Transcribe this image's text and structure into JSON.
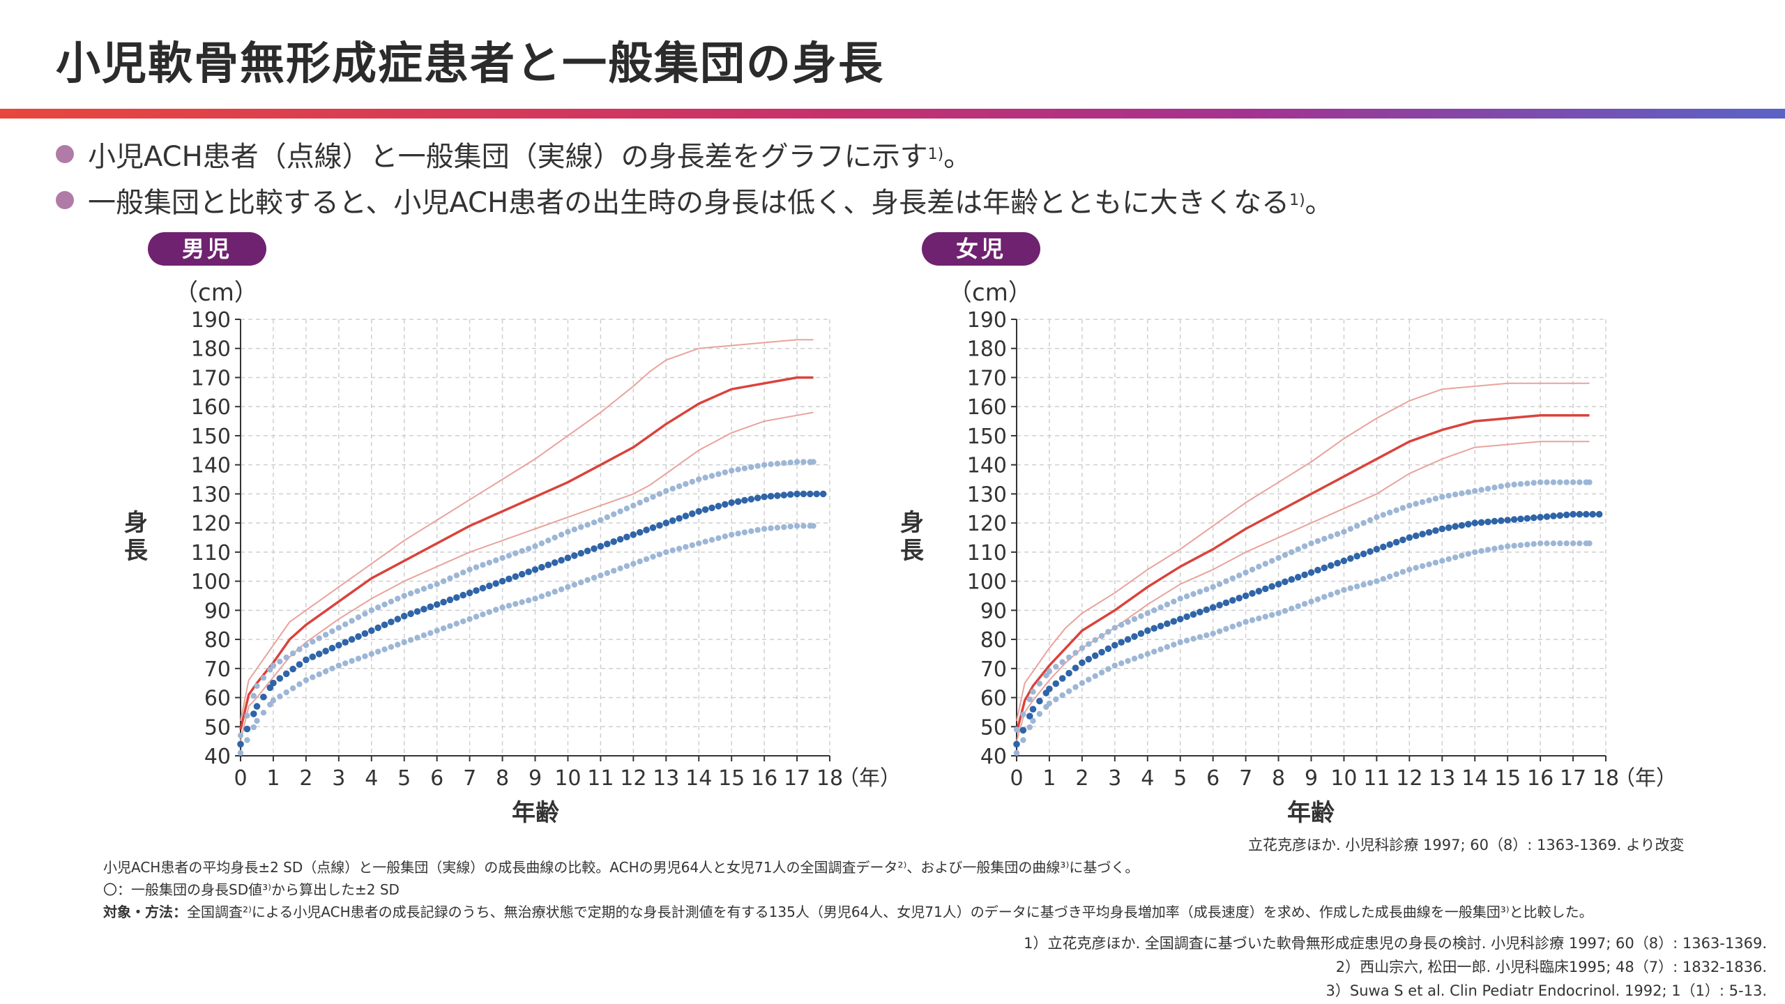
{
  "title": "小児軟骨無形成症患者と一般集団の身長",
  "bullets": [
    {
      "text": "小児ACH患者（点線）と一般集団（実線）の身長差をグラフに示す",
      "sup": "1)",
      "end": "。"
    },
    {
      "text": "一般集団と比較すると、小児ACH患者の出生時の身長は低く、身長差は年齢とともに大きくなる",
      "sup": "1)",
      "end": "。"
    }
  ],
  "colors": {
    "general_mean": "#d9433b",
    "general_sd": "#e8a39b",
    "ach_mean": "#2f64a8",
    "ach_sd": "#9db6d6",
    "badge": "#6f2270"
  },
  "chart_data": [
    {
      "type": "line",
      "title": "男児",
      "ylabel": "身長",
      "yunit": "（cm）",
      "xlabel": "年齢",
      "xunit": "（年）",
      "xlim": [
        0,
        18
      ],
      "ylim": [
        40,
        190
      ],
      "xticks": [
        0,
        1,
        2,
        3,
        4,
        5,
        6,
        7,
        8,
        9,
        10,
        11,
        12,
        13,
        14,
        15,
        16,
        17,
        18
      ],
      "yticks": [
        40,
        50,
        60,
        70,
        80,
        90,
        100,
        110,
        120,
        130,
        140,
        150,
        160,
        170,
        180,
        190
      ],
      "grid": true,
      "series": [
        {
          "group": "一般集団",
          "stat": "+2SD",
          "x": [
            0,
            0.25,
            0.5,
            1,
            1.5,
            2,
            3,
            4,
            4.5,
            5,
            6,
            7,
            8,
            9,
            10,
            11,
            12,
            12.5,
            13,
            14,
            15,
            16,
            17,
            17.5
          ],
          "y": [
            52,
            66,
            70,
            78,
            86,
            90,
            98,
            106,
            110,
            114,
            121,
            128,
            135,
            142,
            150,
            158,
            167,
            172,
            176,
            180,
            181,
            182,
            183,
            183
          ]
        },
        {
          "group": "一般集団",
          "stat": "mean",
          "x": [
            0,
            0.25,
            0.5,
            1,
            1.5,
            2,
            3,
            4,
            5,
            6,
            7,
            8,
            9,
            10,
            11,
            12,
            12.5,
            13,
            14,
            15,
            16,
            17,
            17.5
          ],
          "y": [
            49,
            61,
            65,
            72,
            80,
            85,
            93,
            101,
            107,
            113,
            119,
            124,
            129,
            134,
            140,
            146,
            150,
            154,
            161,
            166,
            168,
            170,
            170
          ]
        },
        {
          "group": "一般集団",
          "stat": "-2SD",
          "x": [
            0,
            0.25,
            0.5,
            1,
            1.5,
            2,
            3,
            4,
            5,
            6,
            7,
            8,
            9,
            10,
            11,
            12,
            12.5,
            13,
            14,
            15,
            16,
            17,
            17.5
          ],
          "y": [
            45,
            57,
            60,
            67,
            74,
            79,
            87,
            94,
            100,
            105,
            110,
            114,
            118,
            122,
            126,
            130,
            133,
            137,
            145,
            151,
            155,
            157,
            158
          ]
        },
        {
          "group": "小児ACH患者",
          "stat": "+2SD",
          "x": [
            0,
            0.5,
            1,
            2,
            3,
            4,
            5,
            6,
            7,
            8,
            9,
            10,
            11,
            12,
            13,
            14,
            15,
            16,
            17,
            17.5
          ],
          "y": [
            47,
            64,
            71,
            78,
            84,
            90,
            95,
            99,
            104,
            108,
            112,
            117,
            121,
            126,
            131,
            135,
            138,
            140,
            141,
            141
          ]
        },
        {
          "group": "小児ACH患者",
          "stat": "mean",
          "x": [
            0,
            0.5,
            1,
            2,
            3,
            4,
            5,
            6,
            7,
            8,
            9,
            10,
            11,
            12,
            13,
            14,
            15,
            16,
            17,
            17.8
          ],
          "y": [
            44,
            57,
            65,
            73,
            78,
            83,
            88,
            92,
            96,
            100,
            104,
            108,
            112,
            116,
            120,
            124,
            127,
            129,
            130,
            130
          ]
        },
        {
          "group": "小児ACH患者",
          "stat": "-2SD",
          "x": [
            0,
            0.5,
            1,
            2,
            3,
            4,
            5,
            6,
            7,
            8,
            9,
            10,
            11,
            12,
            13,
            14,
            15,
            16,
            17,
            17.5
          ],
          "y": [
            41,
            52,
            59,
            66,
            71,
            75,
            79,
            83,
            87,
            91,
            94,
            98,
            102,
            106,
            110,
            113,
            116,
            118,
            119,
            119
          ]
        }
      ]
    },
    {
      "type": "line",
      "title": "女児",
      "ylabel": "身長",
      "yunit": "（cm）",
      "xlabel": "年齢",
      "xunit": "（年）",
      "xlim": [
        0,
        18
      ],
      "ylim": [
        40,
        190
      ],
      "xticks": [
        0,
        1,
        2,
        3,
        4,
        5,
        6,
        7,
        8,
        9,
        10,
        11,
        12,
        13,
        14,
        15,
        16,
        17,
        18
      ],
      "yticks": [
        40,
        50,
        60,
        70,
        80,
        90,
        100,
        110,
        120,
        130,
        140,
        150,
        160,
        170,
        180,
        190
      ],
      "grid": true,
      "series": [
        {
          "group": "一般集団",
          "stat": "+2SD",
          "x": [
            0,
            0.25,
            0.5,
            1,
            1.5,
            2,
            3,
            4,
            5,
            6,
            7,
            8,
            9,
            10,
            11,
            12,
            13,
            14,
            15,
            16,
            17,
            17.5
          ],
          "y": [
            52,
            65,
            69,
            77,
            84,
            89,
            96,
            104,
            111,
            119,
            127,
            134,
            141,
            149,
            156,
            162,
            166,
            167,
            168,
            168,
            168,
            168
          ]
        },
        {
          "group": "一般集団",
          "stat": "mean",
          "x": [
            0,
            0.25,
            0.5,
            1,
            1.5,
            2,
            3,
            4,
            5,
            6,
            7,
            8,
            9,
            10,
            11,
            12,
            13,
            14,
            15,
            16,
            17,
            17.5
          ],
          "y": [
            48,
            59,
            64,
            71,
            77,
            83,
            90,
            98,
            105,
            111,
            118,
            124,
            130,
            136,
            142,
            148,
            152,
            155,
            156,
            157,
            157,
            157
          ]
        },
        {
          "group": "一般集団",
          "stat": "-2SD",
          "x": [
            0,
            0.25,
            0.5,
            1,
            1.5,
            2,
            3,
            4,
            5,
            6,
            7,
            8,
            9,
            10,
            11,
            12,
            13,
            14,
            15,
            16,
            17,
            17.5
          ],
          "y": [
            45,
            55,
            59,
            66,
            72,
            77,
            84,
            92,
            99,
            104,
            110,
            115,
            120,
            125,
            130,
            137,
            142,
            146,
            147,
            148,
            148,
            148
          ]
        },
        {
          "group": "小児ACH患者",
          "stat": "+2SD",
          "x": [
            0,
            0.5,
            1,
            2,
            3,
            4,
            5,
            6,
            7,
            8,
            9,
            10,
            11,
            12,
            13,
            14,
            15,
            16,
            17,
            17.5
          ],
          "y": [
            49,
            62,
            69,
            77,
            84,
            89,
            94,
            98,
            103,
            108,
            113,
            117,
            122,
            126,
            129,
            131,
            133,
            134,
            134,
            134
          ]
        },
        {
          "group": "小児ACH患者",
          "stat": "mean",
          "x": [
            0,
            0.5,
            1,
            2,
            3,
            4,
            5,
            6,
            7,
            8,
            9,
            10,
            11,
            12,
            13,
            14,
            15,
            16,
            17,
            17.8
          ],
          "y": [
            44,
            56,
            63,
            72,
            78,
            83,
            87,
            91,
            95,
            99,
            103,
            107,
            111,
            115,
            118,
            120,
            121,
            122,
            123,
            123
          ]
        },
        {
          "group": "小児ACH患者",
          "stat": "-2SD",
          "x": [
            0,
            0.5,
            1,
            2,
            3,
            4,
            5,
            6,
            7,
            8,
            9,
            10,
            11,
            12,
            13,
            14,
            15,
            16,
            17,
            17.5
          ],
          "y": [
            41,
            52,
            58,
            65,
            71,
            75,
            79,
            82,
            86,
            89,
            93,
            97,
            100,
            104,
            107,
            110,
            112,
            113,
            113,
            113
          ]
        }
      ]
    }
  ],
  "source": "立花克彦ほか. 小児科診療 1997; 60（8）: 1363-1369. より改変",
  "notes": {
    "line1": "小児ACH患者の平均身長±2 SD（点線）と一般集団（実線）の成長曲線の比較。ACHの男児64人と女児71人の全国調査データ²⁾、および一般集団の曲線³⁾に基づく。",
    "line2": "〇：一般集団の身長SD値³⁾から算出した±2 SD",
    "line3_label": "対象・方法：",
    "line3": "全国調査²⁾による小児ACH患者の成長記録のうち、無治療状態で定期的な身長計測値を有する135人（男児64人、女児71人）のデータに基づき平均身長増加率（成長速度）を求め、作成した成長曲線を一般集団³⁾と比較した。"
  },
  "references": [
    "1）立花克彦ほか. 全国調査に基づいた軟骨無形成症患児の身長の検討. 小児科診療 1997; 60（8）: 1363-1369.",
    "2）西山宗六, 松田一郎. 小児科臨床1995; 48（7）: 1832-1836.",
    "3）Suwa S et al. Clin Pediatr Endocrinol. 1992; 1（1）: 5-13."
  ]
}
